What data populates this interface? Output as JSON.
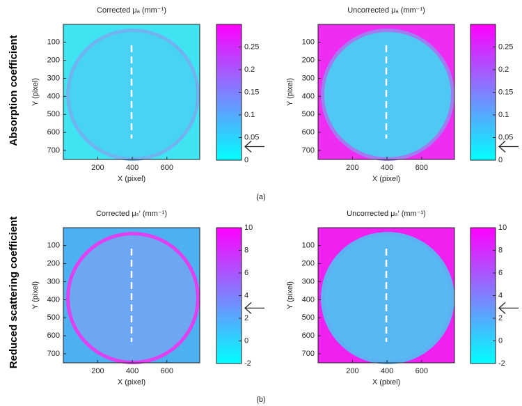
{
  "row_labels": [
    "Absorption coefficient",
    "Reduced scattering coefficient"
  ],
  "panel_labels": [
    "(a)",
    "(b)"
  ],
  "chart_data": [
    {
      "type": "heatmap",
      "title": "Corrected μₐ (mm⁻¹)",
      "xlabel": "X (pixel)",
      "ylabel": "Y (pixel)",
      "xlim": [
        1,
        790
      ],
      "xticks": [
        200,
        400,
        600
      ],
      "ylim": [
        1,
        750
      ],
      "y_reversed": true,
      "yticks": [
        100,
        200,
        300,
        400,
        500,
        600,
        700
      ],
      "clim": [
        0,
        0.3
      ],
      "cticks": [
        0,
        0.05,
        0.1,
        0.15,
        0.2,
        0.25
      ],
      "colormap": [
        "#00ffff",
        "#ff00ff"
      ],
      "arrow_value": 0.03
    },
    {
      "type": "heatmap",
      "title": "Uncorrected μₐ (mm⁻¹)",
      "xlabel": "X (pixel)",
      "ylabel": "Y (pixel)",
      "xlim": [
        1,
        790
      ],
      "xticks": [
        200,
        400,
        600
      ],
      "ylim": [
        1,
        750
      ],
      "y_reversed": true,
      "yticks": [
        100,
        200,
        300,
        400,
        500,
        600,
        700
      ],
      "clim": [
        0,
        0.3
      ],
      "cticks": [
        0,
        0.05,
        0.1,
        0.15,
        0.2,
        0.25
      ],
      "colormap": [
        "#00ffff",
        "#ff00ff"
      ],
      "arrow_value": 0.03
    },
    {
      "type": "heatmap",
      "title": "Corrected μₛ′ (mm⁻¹)",
      "xlabel": "X (pixel)",
      "ylabel": "Y (pixel)",
      "xlim": [
        1,
        790
      ],
      "xticks": [
        200,
        400,
        600
      ],
      "ylim": [
        1,
        750
      ],
      "y_reversed": true,
      "yticks": [
        100,
        200,
        300,
        400,
        500,
        600,
        700
      ],
      "clim": [
        -2,
        10
      ],
      "cticks": [
        -2,
        0,
        2,
        4,
        6,
        8,
        10
      ],
      "colormap": [
        "#00ffff",
        "#ff00ff"
      ],
      "arrow_value": 2.9
    },
    {
      "type": "heatmap",
      "title": "Uncorrected μₛ′ (mm⁻¹)",
      "xlabel": "X (pixel)",
      "ylabel": "Y (pixel)",
      "xlim": [
        1,
        790
      ],
      "xticks": [
        200,
        400,
        600
      ],
      "ylim": [
        1,
        750
      ],
      "y_reversed": true,
      "yticks": [
        100,
        200,
        300,
        400,
        500,
        600,
        700
      ],
      "clim": [
        -2,
        10
      ],
      "cticks": [
        -2,
        0,
        2,
        4,
        6,
        8,
        10
      ],
      "colormap": [
        "#00ffff",
        "#ff00ff"
      ],
      "arrow_value": 2.9
    }
  ]
}
